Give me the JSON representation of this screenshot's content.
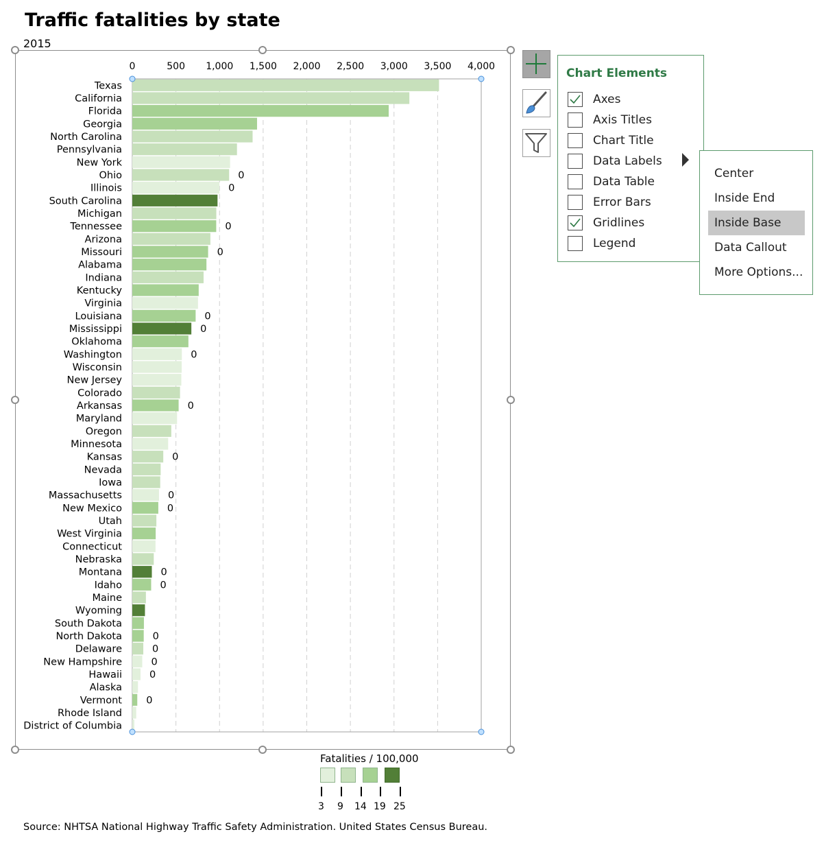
{
  "chart_data": {
    "type": "bar",
    "orientation": "horizontal",
    "title": "Traffic fatalities by state",
    "subtitle": "2015",
    "xlim": [
      0,
      4000
    ],
    "x_ticks": [
      "0",
      "500",
      "1,000",
      "1,500",
      "2,000",
      "2,500",
      "3,000",
      "3,500",
      "4,000"
    ],
    "grid": "vertical dashed",
    "categories": [
      "Texas",
      "California",
      "Florida",
      "Georgia",
      "North Carolina",
      "Pennsylvania",
      "New York",
      "Ohio",
      "Illinois",
      "South Carolina",
      "Michigan",
      "Tennessee",
      "Arizona",
      "Missouri",
      "Alabama",
      "Indiana",
      "Kentucky",
      "Virginia",
      "Louisiana",
      "Mississippi",
      "Oklahoma",
      "Washington",
      "Wisconsin",
      "New Jersey",
      "Colorado",
      "Arkansas",
      "Maryland",
      "Oregon",
      "Minnesota",
      "Kansas",
      "Nevada",
      "Iowa",
      "Massachusetts",
      "New Mexico",
      "Utah",
      "West Virginia",
      "Connecticut",
      "Nebraska",
      "Montana",
      "Idaho",
      "Maine",
      "Wyoming",
      "South Dakota",
      "North Dakota",
      "Delaware",
      "New Hampshire",
      "Hawaii",
      "Alaska",
      "Vermont",
      "Rhode Island",
      "District of Columbia"
    ],
    "values": [
      3516,
      3176,
      2939,
      1430,
      1379,
      1200,
      1121,
      1110,
      999,
      977,
      963,
      962,
      895,
      869,
      850,
      817,
      761,
      753,
      726,
      677,
      643,
      568,
      566,
      562,
      547,
      531,
      513,
      447,
      411,
      355,
      325,
      320,
      306,
      298,
      276,
      268,
      266,
      246,
      224,
      216,
      156,
      145,
      133,
      131,
      126,
      114,
      94,
      65,
      57,
      45,
      23
    ],
    "color_bins": [
      1,
      1,
      2,
      2,
      1,
      1,
      0,
      1,
      0,
      3,
      1,
      2,
      1,
      2,
      2,
      1,
      2,
      0,
      2,
      3,
      2,
      0,
      0,
      0,
      1,
      2,
      0,
      1,
      0,
      1,
      1,
      1,
      0,
      2,
      1,
      2,
      0,
      1,
      3,
      2,
      1,
      3,
      2,
      2,
      1,
      0,
      0,
      0,
      2,
      0,
      0
    ],
    "data_labels": {
      "Ohio": "0",
      "Illinois": "0",
      "Tennessee": "0",
      "Missouri": "0",
      "Louisiana": "0",
      "Mississippi": "0",
      "Washington": "0",
      "Arkansas": "0",
      "Kansas": "0",
      "Massachusetts": "0",
      "New Mexico": "0",
      "Montana": "0",
      "Idaho": "0",
      "North Dakota": "0",
      "Delaware": "0",
      "New Hampshire": "0",
      "Hawaii": "0",
      "Vermont": "0"
    },
    "legend": {
      "title": "Fatalities / 100,000",
      "placement": "bottom-center",
      "colors": [
        "#e2f0dc",
        "#c7e0bb",
        "#a6d193",
        "#527f37"
      ],
      "labels": [
        "3",
        "9",
        "14",
        "19",
        "25"
      ]
    }
  },
  "chart_elements_panel": {
    "title": "Chart Elements",
    "items": [
      {
        "label": "Axes",
        "checked": true
      },
      {
        "label": "Axis Titles",
        "checked": false
      },
      {
        "label": "Chart Title",
        "checked": false
      },
      {
        "label": "Data Labels",
        "checked": false
      },
      {
        "label": "Data Table",
        "checked": false
      },
      {
        "label": "Error Bars",
        "checked": false
      },
      {
        "label": "Gridlines",
        "checked": true
      },
      {
        "label": "Legend",
        "checked": false
      }
    ],
    "accent": "#2f7a46"
  },
  "data_labels_submenu": {
    "items": [
      "Center",
      "Inside End",
      "Inside Base",
      "Data Callout",
      "More Options..."
    ],
    "selected": "Inside Base"
  },
  "source": "Source: NHTSA National Highway Traffic Safety Administration. United States Census Bureau."
}
